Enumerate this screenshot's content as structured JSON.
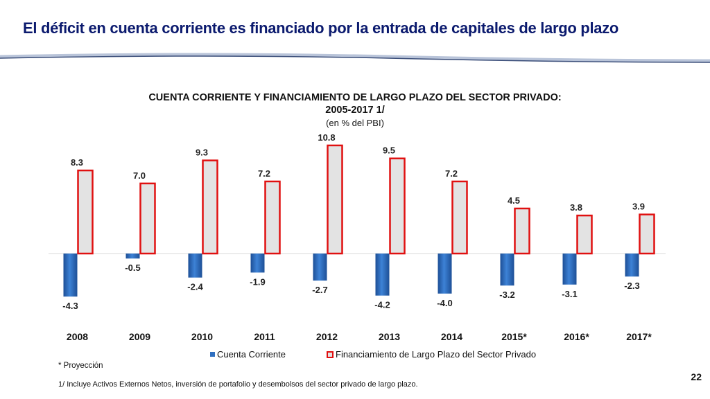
{
  "slide": {
    "title": "El déficit en cuenta corriente es financiado por la entrada de capitales de largo plazo",
    "page_number": "22"
  },
  "chart_data": {
    "type": "bar",
    "title_line1": "CUENTA CORRIENTE Y FINANCIAMIENTO DE LARGO PLAZO DEL SECTOR PRIVADO:",
    "title_line2": "2005-2017 1/",
    "subtitle": "(en % del PBI)",
    "categories": [
      "2008",
      "2009",
      "2010",
      "2011",
      "2012",
      "2013",
      "2014",
      "2015*",
      "2016*",
      "2017*"
    ],
    "series": [
      {
        "name": "Cuenta Corriente",
        "values": [
          -4.3,
          -0.5,
          -2.4,
          -1.9,
          -2.7,
          -4.2,
          -4.0,
          -3.2,
          -3.1,
          -2.3
        ],
        "labels": [
          "-4.3",
          "-0.5",
          "-2.4",
          "-1.9",
          "-2.7",
          "-4.2",
          "-4.0",
          "-3.2",
          "-3.1",
          "-2.3"
        ],
        "color": "#2f6fc0"
      },
      {
        "name": "Financiamiento de Largo Plazo del Sector Privado",
        "values": [
          8.3,
          7.0,
          9.3,
          7.2,
          10.8,
          9.5,
          7.2,
          4.5,
          3.8,
          3.9
        ],
        "labels": [
          "8.3",
          "7.0",
          "9.3",
          "7.2",
          "10.8",
          "9.5",
          "7.2",
          "4.5",
          "3.8",
          "3.9"
        ],
        "color": "#e01010",
        "fill": "#e3e3e3"
      }
    ],
    "ylim": [
      -5,
      11
    ],
    "grid": false,
    "legend_position": "bottom"
  },
  "footnotes": {
    "projection": "* Proyección",
    "note": "1/ Incluye Activos Externos Netos, inversión de portafolio y desembolsos del sector privado de largo plazo."
  }
}
